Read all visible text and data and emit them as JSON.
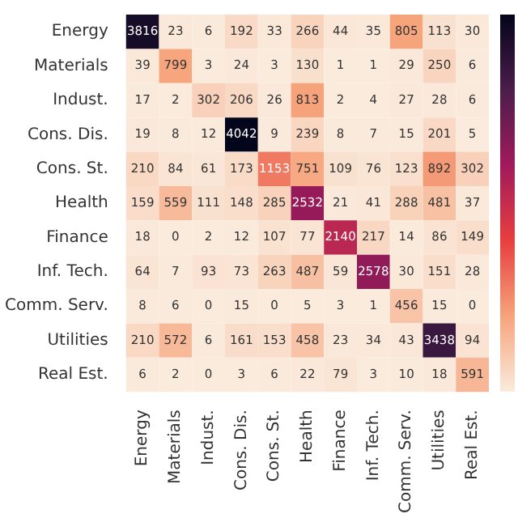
{
  "chart_data": {
    "type": "heatmap",
    "categories": [
      "Energy",
      "Materials",
      "Indust.",
      "Cons. Dis.",
      "Cons. St.",
      "Health",
      "Finance",
      "Inf. Tech.",
      "Comm. Serv.",
      "Utilities",
      "Real Est."
    ],
    "y_categories": [
      "Energy",
      "Materials",
      "Indust.",
      "Cons. Dis.",
      "Cons. St.",
      "Health",
      "Finance",
      "Inf. Tech.",
      "Comm. Serv.",
      "Utilities",
      "Real Est."
    ],
    "cells": [
      [
        3816,
        23,
        6,
        192,
        33,
        266,
        44,
        35,
        805,
        113,
        30
      ],
      [
        39,
        799,
        3,
        24,
        3,
        130,
        1,
        1,
        29,
        250,
        6
      ],
      [
        17,
        2,
        302,
        206,
        26,
        813,
        2,
        4,
        27,
        28,
        6
      ],
      [
        19,
        8,
        12,
        4042,
        9,
        239,
        8,
        7,
        15,
        201,
        5
      ],
      [
        210,
        84,
        61,
        173,
        1153,
        751,
        109,
        76,
        123,
        892,
        302
      ],
      [
        159,
        559,
        111,
        148,
        285,
        2532,
        21,
        41,
        288,
        481,
        37
      ],
      [
        18,
        0,
        2,
        12,
        107,
        77,
        2140,
        217,
        14,
        86,
        149
      ],
      [
        64,
        7,
        93,
        73,
        263,
        487,
        59,
        2578,
        30,
        151,
        28
      ],
      [
        8,
        6,
        0,
        15,
        0,
        5,
        3,
        1,
        456,
        15,
        0
      ],
      [
        210,
        572,
        6,
        161,
        153,
        458,
        23,
        34,
        43,
        3438,
        94
      ],
      [
        6,
        2,
        0,
        3,
        6,
        22,
        79,
        3,
        10,
        18,
        591
      ]
    ],
    "data_labels": true
  }
}
